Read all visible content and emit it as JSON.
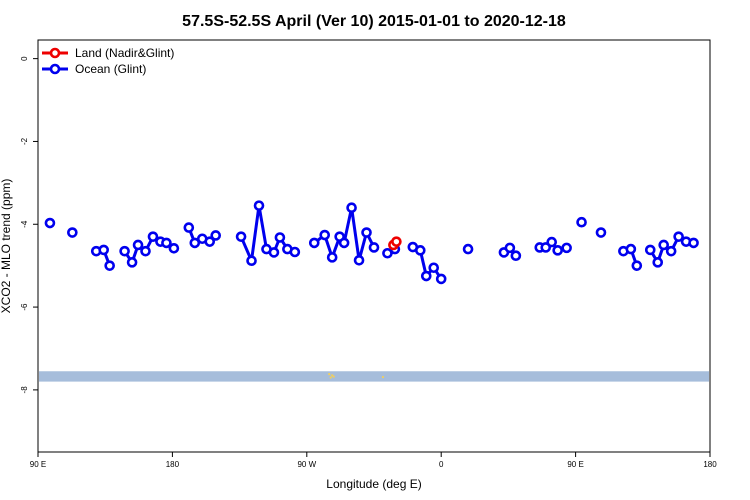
{
  "chart_data": {
    "type": "line",
    "title": "57.5S-52.5S April (Ver 10)   2015-01-01 to 2020-12-18",
    "xlabel": "Longitude (deg E)",
    "ylabel": "XCO2 - MLO trend (ppm)",
    "x_ticks": [
      {
        "value": 90,
        "label": "90 E"
      },
      {
        "value": 180,
        "label": "180"
      },
      {
        "value": 270,
        "label": "90 W"
      },
      {
        "value": 360,
        "label": "0"
      },
      {
        "value": 450,
        "label": "90 E"
      },
      {
        "value": 540,
        "label": "180"
      }
    ],
    "y_ticks": [
      0,
      -2,
      -4,
      -6,
      -8
    ],
    "xlim": [
      90,
      540
    ],
    "ylim": [
      -9.5,
      0.45
    ],
    "grid": false,
    "legend_position": "top-left",
    "series": [
      {
        "name": "Land (Nadir&Glint)",
        "color": "#ee0000",
        "segments": [
          [
            [
              328,
              -4.5
            ],
            [
              330,
              -4.42
            ]
          ]
        ]
      },
      {
        "name": "Ocean (Glint)",
        "color": "#0000ee",
        "segments": [
          [
            [
              98,
              -3.97
            ]
          ],
          [
            [
              113,
              -4.2
            ]
          ],
          [
            [
              129,
              -4.65
            ],
            [
              134,
              -4.62
            ],
            [
              138,
              -5.0
            ]
          ],
          [
            [
              148,
              -4.65
            ],
            [
              153,
              -4.92
            ],
            [
              157,
              -4.5
            ],
            [
              162,
              -4.65
            ],
            [
              167,
              -4.3
            ],
            [
              172,
              -4.42
            ],
            [
              176,
              -4.45
            ],
            [
              181,
              -4.58
            ]
          ],
          [
            [
              191,
              -4.08
            ],
            [
              195,
              -4.45
            ],
            [
              200,
              -4.35
            ],
            [
              205,
              -4.42
            ],
            [
              209,
              -4.27
            ]
          ],
          [
            [
              226,
              -4.3
            ],
            [
              233,
              -4.88
            ],
            [
              238,
              -3.55
            ],
            [
              243,
              -4.6
            ],
            [
              248,
              -4.68
            ],
            [
              252,
              -4.32
            ],
            [
              257,
              -4.6
            ],
            [
              262,
              -4.67
            ]
          ],
          [
            [
              275,
              -4.45
            ],
            [
              282,
              -4.26
            ],
            [
              287,
              -4.8
            ],
            [
              292,
              -4.3
            ],
            [
              295,
              -4.45
            ],
            [
              300,
              -3.6
            ],
            [
              305,
              -4.87
            ],
            [
              310,
              -4.2
            ],
            [
              315,
              -4.56
            ]
          ],
          [
            [
              324,
              -4.7
            ],
            [
              329,
              -4.6
            ]
          ],
          [
            [
              341,
              -4.55
            ],
            [
              346,
              -4.63
            ],
            [
              350,
              -5.25
            ],
            [
              355,
              -5.05
            ],
            [
              360,
              -5.32
            ]
          ],
          [
            [
              378,
              -4.6
            ]
          ],
          [
            [
              402,
              -4.68
            ],
            [
              406,
              -4.57
            ],
            [
              410,
              -4.76
            ]
          ],
          [
            [
              426,
              -4.56
            ],
            [
              430,
              -4.56
            ],
            [
              434,
              -4.43
            ],
            [
              438,
              -4.63
            ],
            [
              444,
              -4.57
            ]
          ],
          [
            [
              454,
              -3.95
            ]
          ],
          [
            [
              467,
              -4.2
            ]
          ],
          [
            [
              482,
              -4.65
            ],
            [
              487,
              -4.6
            ],
            [
              491,
              -5.0
            ]
          ],
          [
            [
              500,
              -4.62
            ],
            [
              505,
              -4.92
            ],
            [
              509,
              -4.5
            ],
            [
              514,
              -4.65
            ],
            [
              519,
              -4.3
            ],
            [
              524,
              -4.42
            ],
            [
              529,
              -4.45
            ]
          ]
        ]
      }
    ],
    "background_band": {
      "y_range": [
        -7.8,
        -7.55
      ],
      "color": "#a6bddb"
    },
    "band_speckles": [
      [
        285,
        -7.62
      ],
      [
        287,
        -7.65
      ],
      [
        288,
        -7.68
      ],
      [
        286,
        -7.7
      ],
      [
        321,
        -7.69
      ]
    ]
  }
}
